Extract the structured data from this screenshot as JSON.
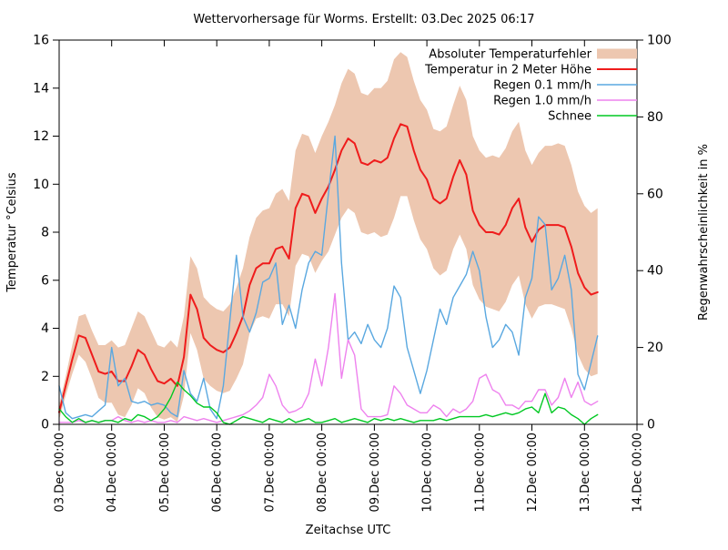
{
  "title": "Wettervorhersage für Worms. Erstellt: 03.Dec 2025 06:17",
  "axes": {
    "x": {
      "label": "Zeitachse UTC",
      "tick_labels": [
        "03.Dec 00:00",
        "04.Dec 00:00",
        "05.Dec 00:00",
        "06.Dec 00:00",
        "07.Dec 00:00",
        "08.Dec 00:00",
        "09.Dec 00:00",
        "10.Dec 00:00",
        "11.Dec 00:00",
        "12.Dec 00:00",
        "13.Dec 00:00",
        "14.Dec 00:00"
      ],
      "range_days": [
        0,
        11
      ]
    },
    "y_left": {
      "label": "Temperatur °Celsius",
      "ticks": [
        0,
        2,
        4,
        6,
        8,
        10,
        12,
        14,
        16
      ],
      "min": 0,
      "max": 16
    },
    "y_right": {
      "label": "Regenwahrscheinlichkeit in %",
      "ticks": [
        0,
        20,
        40,
        60,
        80,
        100
      ],
      "min": 0,
      "max": 100
    }
  },
  "legend": [
    {
      "label": "Absoluter Temperaturfehler",
      "type": "band",
      "color": "#edc7b0"
    },
    {
      "label": "Temperatur in 2 Meter Höhe",
      "type": "line",
      "color": "#ef1c1c"
    },
    {
      "label": "Regen 0.1 mm/h",
      "type": "line",
      "color": "#5aa8e0"
    },
    {
      "label": "Regen 1.0 mm/h",
      "type": "line",
      "color": "#ee82ee"
    },
    {
      "label": "Schnee",
      "type": "line",
      "color": "#00c822"
    }
  ],
  "chart_data": {
    "type": "line",
    "title": "Wettervorhersage für Worms. Erstellt: 03.Dec 2025 06:17",
    "xlabel": "Zeitachse UTC",
    "ylabel_left": "Temperatur °Celsius",
    "ylabel_right": "Regenwahrscheinlichkeit in %",
    "ylim_left": [
      0,
      16
    ],
    "ylim_right": [
      0,
      100
    ],
    "x_range_days": [
      0,
      11
    ],
    "x_start_label": "03.Dec 00:00",
    "x_step_days": 0.125,
    "grid": false,
    "legend_position": "top-right-inside",
    "series": [
      {
        "name": "Absoluter Temperaturfehler",
        "style": "band",
        "axis": "left",
        "unit": "°C",
        "upper": [
          0.8,
          2.0,
          3.3,
          4.5,
          4.6,
          3.9,
          3.3,
          3.3,
          3.5,
          3.2,
          3.3,
          4.0,
          4.7,
          4.5,
          3.9,
          3.3,
          3.2,
          3.5,
          3.2,
          4.5,
          7.0,
          6.5,
          5.3,
          5.0,
          4.8,
          4.7,
          5.0,
          5.7,
          6.5,
          7.8,
          8.6,
          8.9,
          9.0,
          9.6,
          9.8,
          9.3,
          11.4,
          12.1,
          12.0,
          11.3,
          12.0,
          12.6,
          13.3,
          14.2,
          14.8,
          14.6,
          13.8,
          13.7,
          14.0,
          14.0,
          14.3,
          15.2,
          15.5,
          15.3,
          14.3,
          13.5,
          13.1,
          12.3,
          12.2,
          12.4,
          13.3,
          14.1,
          13.5,
          12.0,
          11.4,
          11.1,
          11.2,
          11.1,
          11.5,
          12.2,
          12.6,
          11.4,
          10.8,
          11.3,
          11.6,
          11.6,
          11.7,
          11.6,
          10.8,
          9.7,
          9.1,
          8.8,
          9.0
        ],
        "lower": [
          0.2,
          1.2,
          2.1,
          2.9,
          2.6,
          1.9,
          1.1,
          0.9,
          0.9,
          0.4,
          0.3,
          0.8,
          1.5,
          1.3,
          0.7,
          0.3,
          0.2,
          0.3,
          0.1,
          1.2,
          3.8,
          3.1,
          1.9,
          1.6,
          1.4,
          1.3,
          1.4,
          1.9,
          2.5,
          3.8,
          4.4,
          4.5,
          4.4,
          5.0,
          5.0,
          4.5,
          6.6,
          7.1,
          7.0,
          6.3,
          6.8,
          7.2,
          7.9,
          8.6,
          9.0,
          8.8,
          8.0,
          7.9,
          8.0,
          7.8,
          7.9,
          8.6,
          9.5,
          9.5,
          8.5,
          7.7,
          7.3,
          6.5,
          6.2,
          6.4,
          7.3,
          7.9,
          7.3,
          5.8,
          5.2,
          4.9,
          4.8,
          4.7,
          5.1,
          5.8,
          6.2,
          5.0,
          4.4,
          4.9,
          5.0,
          5.0,
          4.9,
          4.8,
          4.0,
          2.9,
          2.3,
          2.0,
          2.1
        ]
      },
      {
        "name": "Temperatur in 2 Meter Höhe",
        "style": "line",
        "axis": "left",
        "unit": "°C",
        "values": [
          0.5,
          1.6,
          2.7,
          3.7,
          3.6,
          2.9,
          2.2,
          2.1,
          2.2,
          1.8,
          1.8,
          2.4,
          3.1,
          2.9,
          2.3,
          1.8,
          1.7,
          1.9,
          1.6,
          2.8,
          5.4,
          4.8,
          3.6,
          3.3,
          3.1,
          3.0,
          3.2,
          3.8,
          4.5,
          5.8,
          6.5,
          6.7,
          6.7,
          7.3,
          7.4,
          6.9,
          9.0,
          9.6,
          9.5,
          8.8,
          9.4,
          9.9,
          10.6,
          11.4,
          11.9,
          11.7,
          10.9,
          10.8,
          11.0,
          10.9,
          11.1,
          11.9,
          12.5,
          12.4,
          11.4,
          10.6,
          10.2,
          9.4,
          9.2,
          9.4,
          10.3,
          11.0,
          10.4,
          8.9,
          8.3,
          8.0,
          8.0,
          7.9,
          8.3,
          9.0,
          9.4,
          8.2,
          7.6,
          8.1,
          8.3,
          8.3,
          8.3,
          8.2,
          7.4,
          6.3,
          5.7,
          5.4,
          5.5
        ]
      },
      {
        "name": "Regen 0.1 mm/h",
        "style": "line",
        "axis": "right",
        "unit": "%",
        "values": [
          10,
          3,
          1.5,
          2,
          2.5,
          2,
          3.5,
          5,
          20,
          10,
          12,
          6,
          5.5,
          6,
          5,
          5.5,
          5,
          3,
          2,
          14,
          8,
          6,
          12,
          4,
          1.5,
          10,
          27,
          44,
          28,
          24,
          29,
          37,
          38,
          42,
          26,
          31,
          25,
          35,
          42,
          45,
          44,
          60,
          75,
          42,
          22,
          24,
          21,
          26,
          22,
          20,
          25,
          36,
          33,
          20,
          14,
          8,
          14,
          22,
          30,
          26,
          33,
          36,
          39,
          45,
          40,
          28,
          20,
          22,
          26,
          24,
          18,
          33,
          38,
          54,
          52,
          35,
          38,
          44,
          35,
          13,
          9,
          16,
          23
        ]
      },
      {
        "name": "Regen 1.0 mm/h",
        "style": "line",
        "axis": "right",
        "unit": "%",
        "values": [
          0.5,
          0.5,
          0.5,
          1,
          0.5,
          1,
          0.5,
          1,
          1,
          2,
          1,
          0.5,
          1,
          0.5,
          1,
          0.5,
          0.5,
          1,
          0.5,
          2,
          1.5,
          1,
          1.5,
          1,
          0.5,
          1,
          1.5,
          2,
          2.5,
          3.5,
          5,
          7,
          13,
          10,
          5,
          3,
          3.5,
          4.5,
          8,
          17,
          10,
          20,
          34,
          12,
          22,
          18,
          4,
          2,
          2,
          2,
          2.5,
          10,
          8,
          5,
          4,
          3,
          3,
          5,
          4,
          2,
          4,
          3,
          4,
          6,
          12,
          13,
          9,
          8,
          5,
          5,
          4,
          6,
          6,
          9,
          9,
          5,
          7,
          12,
          7,
          11,
          6,
          5,
          6
        ]
      },
      {
        "name": "Schnee",
        "style": "line",
        "axis": "right",
        "unit": "%",
        "values": [
          4,
          2,
          0.5,
          1.5,
          0.5,
          1,
          0.5,
          1,
          1,
          0.5,
          1.5,
          1,
          2.5,
          2,
          1,
          2,
          4,
          7,
          11,
          9,
          7.5,
          5.5,
          4.5,
          4.5,
          3,
          0.5,
          0,
          1,
          2,
          1.5,
          1,
          0.5,
          1.5,
          1,
          0.5,
          1.5,
          0.5,
          1,
          1.5,
          0.5,
          0.5,
          1,
          1.5,
          0.5,
          1,
          1.5,
          1,
          0.5,
          1.5,
          1,
          1.5,
          1,
          1.5,
          1,
          0.5,
          1,
          1,
          1,
          1.5,
          1,
          1.5,
          2,
          2,
          2,
          2,
          2.5,
          2,
          2.5,
          3,
          2.5,
          3,
          4,
          4.5,
          3,
          8,
          3,
          4.5,
          4,
          2.5,
          1.5,
          0,
          1.5,
          2.5
        ]
      }
    ]
  }
}
